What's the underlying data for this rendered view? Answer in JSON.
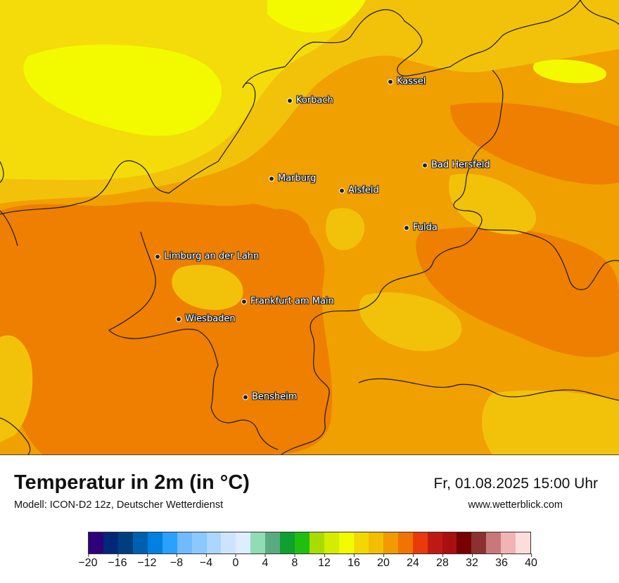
{
  "map": {
    "cities": [
      {
        "id": "kassel",
        "name": "Kassel"
      },
      {
        "id": "korbach",
        "name": "Korbach"
      },
      {
        "id": "bad-hersfeld",
        "name": "Bad Hersfeld"
      },
      {
        "id": "marburg",
        "name": "Marburg"
      },
      {
        "id": "alsfeld",
        "name": "Alsfeld"
      },
      {
        "id": "fulda",
        "name": "Fulda"
      },
      {
        "id": "limburg",
        "name": "Limburg an der Lahn"
      },
      {
        "id": "frankfurt",
        "name": "Frankfurt am Main"
      },
      {
        "id": "wiesbaden",
        "name": "Wiesbaden"
      },
      {
        "id": "bensheim",
        "name": "Bensheim"
      }
    ],
    "colors": {
      "yellow_bright": "#f3fa00",
      "yellow": "#f3dc0a",
      "yellow_orange": "#f2c20a",
      "orange": "#f0a000",
      "orange_dark": "#ee7f00",
      "red_orange": "#e8500a",
      "border": "#1a1a1a"
    }
  },
  "footer": {
    "title": "Temperatur in 2m (in °C)",
    "subtitle": "Modell: ICON-D2 12z, Deutscher Wetterdienst",
    "datetime": "Fr, 01.08.2025 15:00 Uhr",
    "website": "www.wetterblick.com"
  },
  "legend": {
    "colors": [
      "#2e007a",
      "#00287a",
      "#003e80",
      "#0060b0",
      "#0080e0",
      "#2aa0ff",
      "#70baff",
      "#8ac8ff",
      "#aad6ff",
      "#cce4ff",
      "#dceeff",
      "#90dcb4",
      "#5aaa82",
      "#10a030",
      "#20be10",
      "#a8dc00",
      "#d4ec00",
      "#f2fa00",
      "#f2d800",
      "#f2be00",
      "#f29a00",
      "#f07400",
      "#e83a0a",
      "#be1a14",
      "#aa1010",
      "#780000",
      "#8c3030",
      "#c87878",
      "#f0b4b4",
      "#ffdcdc"
    ],
    "ticks": [
      "−20",
      "−16",
      "−12",
      "−8",
      "−4",
      "0",
      "4",
      "8",
      "12",
      "16",
      "20",
      "24",
      "28",
      "32",
      "36",
      "40"
    ]
  }
}
